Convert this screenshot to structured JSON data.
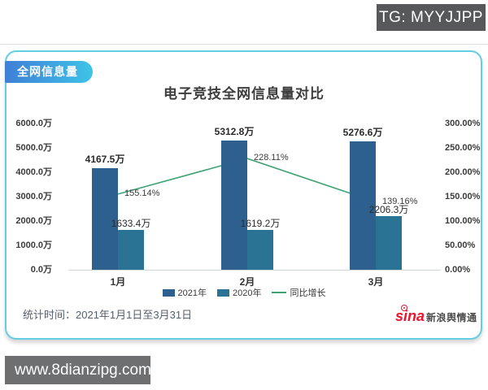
{
  "overlays": {
    "tg_label": "TG: MYYJJPP",
    "watermark": "www.8dianzipg.com"
  },
  "card": {
    "badge": "全网信息量",
    "footer": "统计时间：2021年1月1日至3月31日",
    "brand": {
      "sina": "sina",
      "name": "新浪舆情通"
    }
  },
  "chart_data": {
    "type": "bar+line",
    "title": "电子竞技全网信息量对比",
    "categories": [
      "1月",
      "2月",
      "3月"
    ],
    "series": [
      {
        "name": "2021年",
        "type": "bar",
        "color": "#2d608f",
        "values": [
          4167.5,
          5312.8,
          5276.6
        ],
        "labels": [
          "4167.5万",
          "5312.8万",
          "5276.6万"
        ]
      },
      {
        "name": "2020年",
        "type": "bar",
        "color": "#2b7394",
        "values": [
          1633.4,
          1619.2,
          2206.3
        ],
        "labels": [
          "1633.4万",
          "1619.2万",
          "2206.3万"
        ]
      },
      {
        "name": "同比增长",
        "type": "line",
        "color": "#3fa373",
        "values": [
          155.14,
          228.11,
          139.16
        ],
        "labels": [
          "155.14%",
          "228.11%",
          "139.16%"
        ]
      }
    ],
    "y_left": {
      "min": 0,
      "max": 6000,
      "unit": "万",
      "ticks": [
        "6000.0万",
        "5000.0万",
        "4000.0万",
        "3000.0万",
        "2000.0万",
        "1000.0万",
        "0.0万"
      ]
    },
    "y_right": {
      "min": 0,
      "max": 300,
      "unit": "%",
      "ticks": [
        "300.00%",
        "250.00%",
        "200.00%",
        "150.00%",
        "100.00%",
        "50.00%",
        "0.00%"
      ]
    },
    "legend": [
      "2021年",
      "2020年",
      "同比增长"
    ],
    "legend_position": "bottom",
    "grid": false
  }
}
